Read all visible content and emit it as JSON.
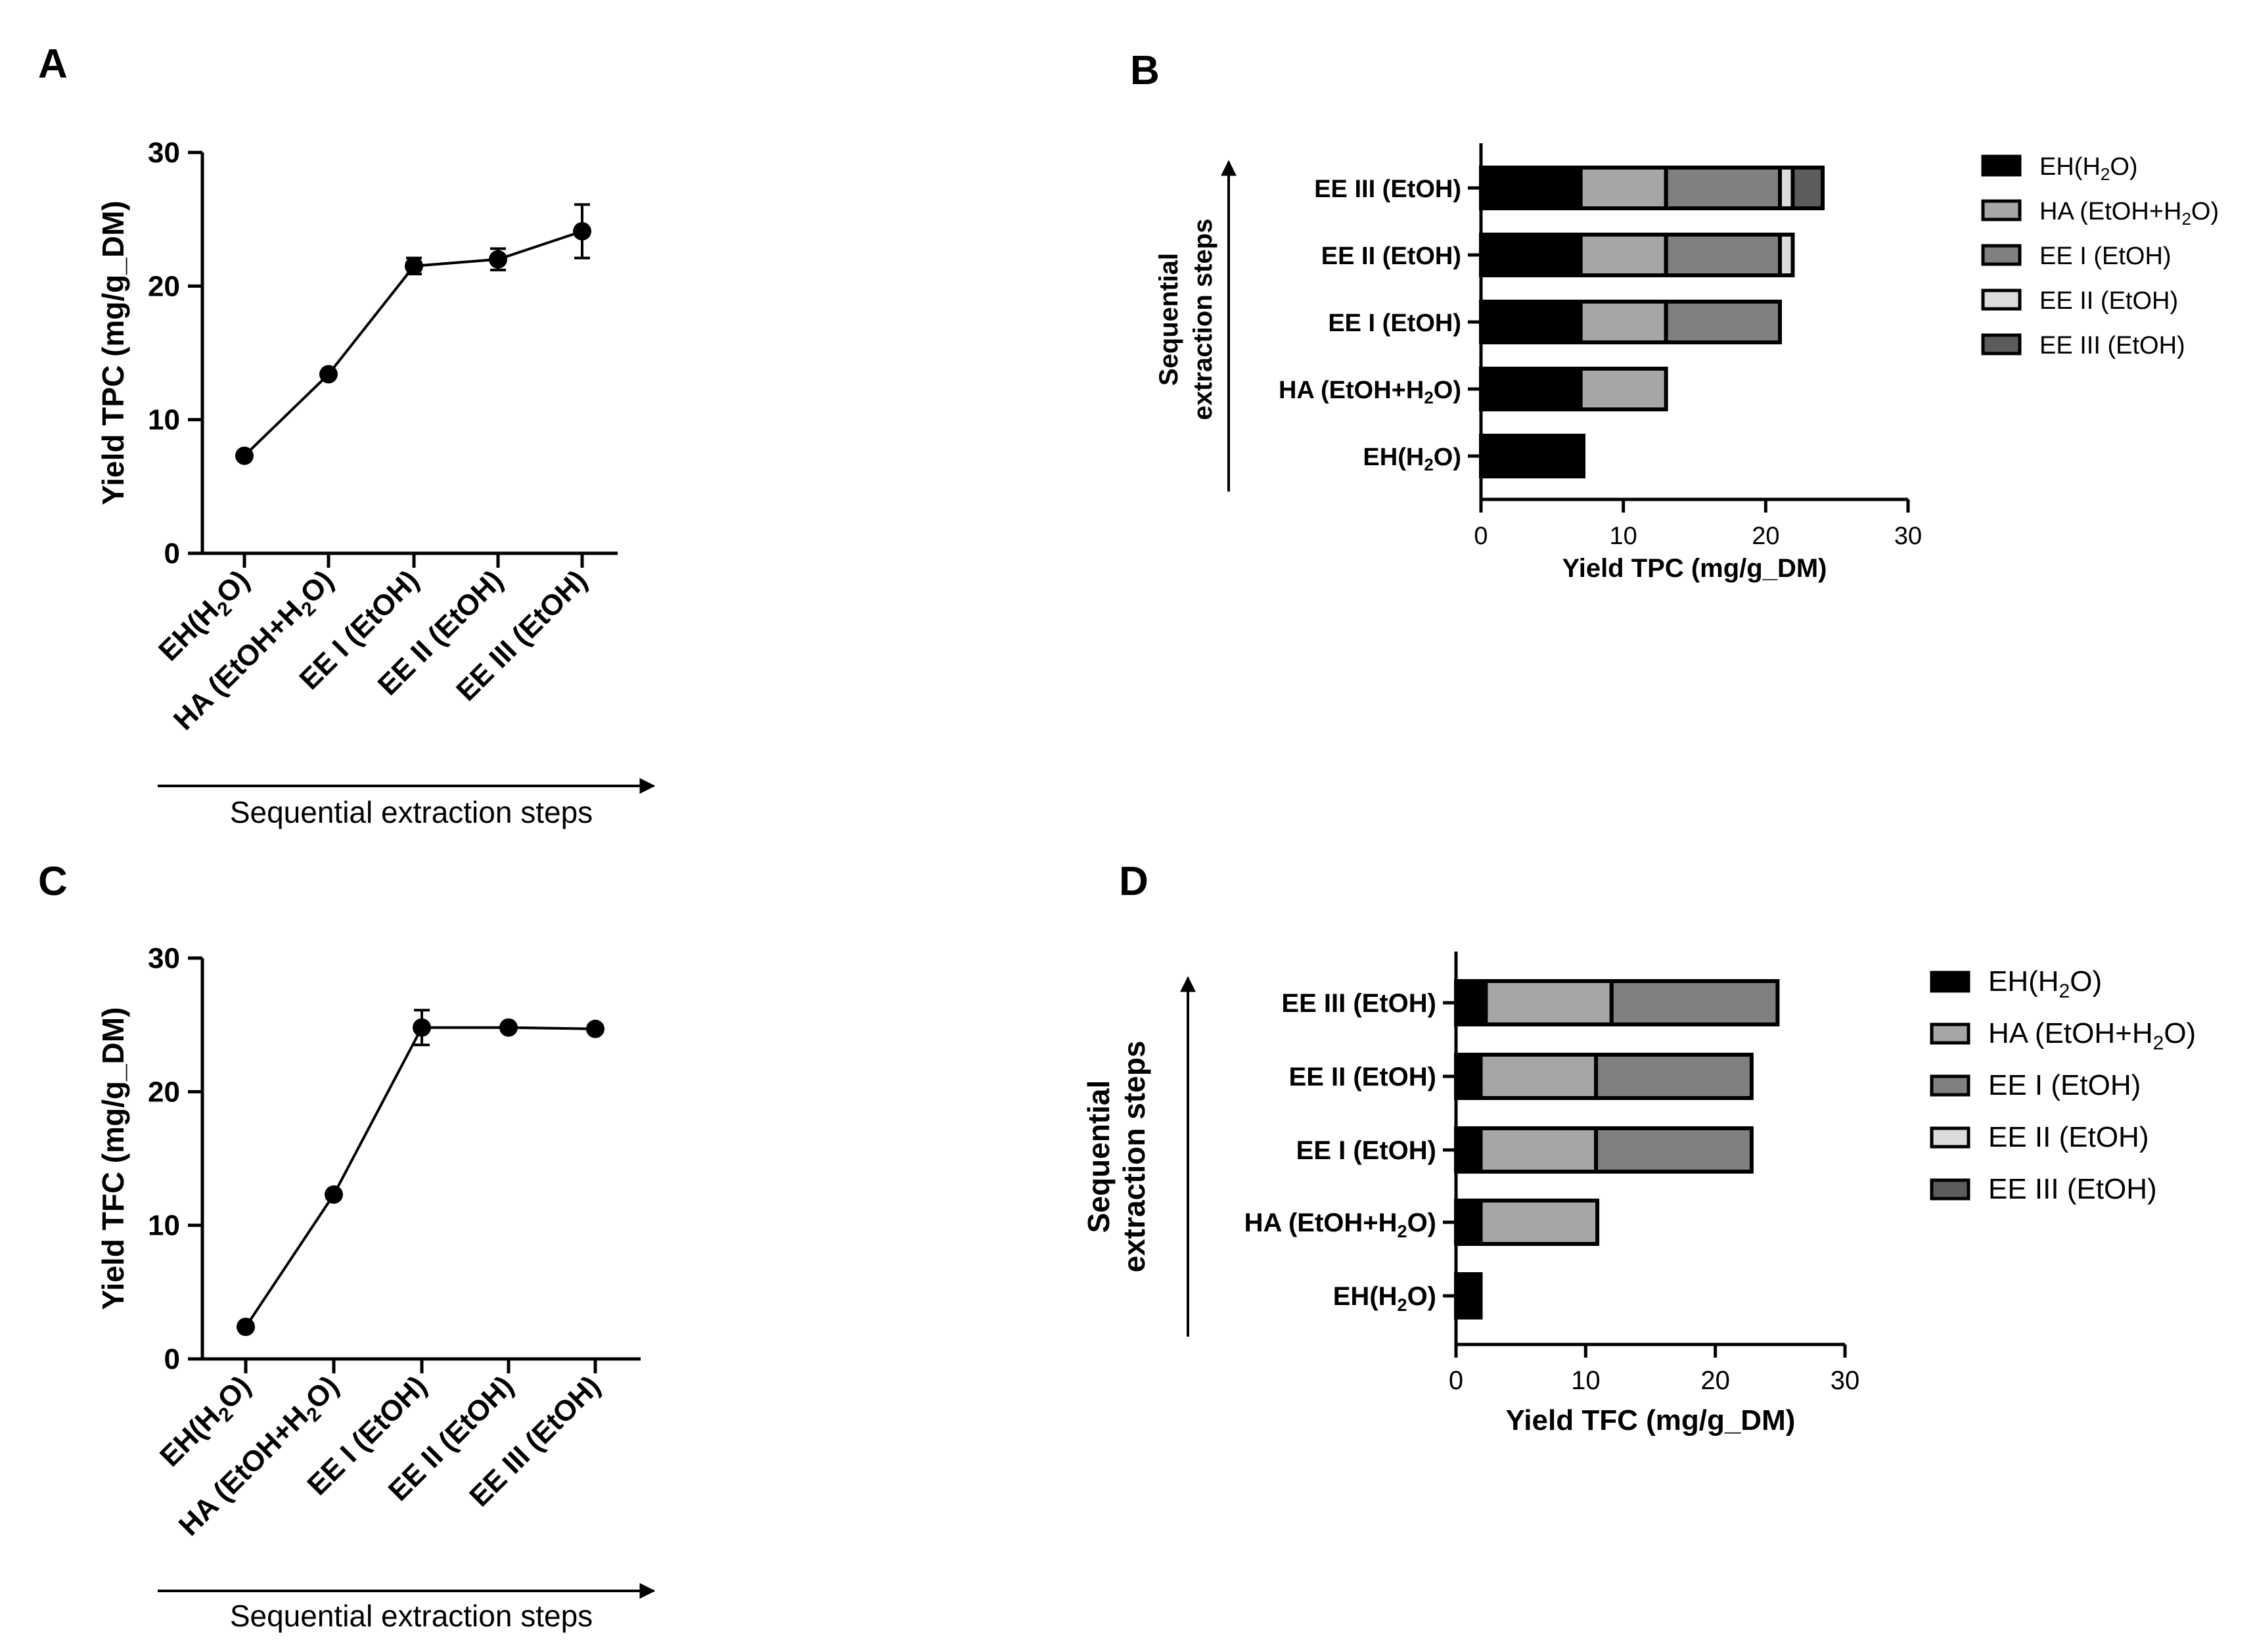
{
  "panel_labels": {
    "a": "A",
    "b": "B",
    "c": "C",
    "d": "D"
  },
  "colors": {
    "eh": "#000000",
    "ha": "#a6a6a6",
    "ee1": "#808080",
    "ee2": "#dcdcdc",
    "ee3": "#5c5c5c",
    "stroke": "#000000"
  },
  "step_labels": [
    {
      "main": "EH(H",
      "sub": "2",
      "tail": "O)"
    },
    {
      "main": "HA (EtOH+H",
      "sub": "2",
      "tail": "O)"
    },
    {
      "main": "EE I (EtOH)",
      "sub": "",
      "tail": ""
    },
    {
      "main": "EE II (EtOH)",
      "sub": "",
      "tail": ""
    },
    {
      "main": "EE III (EtOH)",
      "sub": "",
      "tail": ""
    }
  ],
  "chart_data": [
    {
      "id": "A",
      "type": "line",
      "ylabel": "Yield TPC (mg/g_DM)",
      "xlabel": "Sequential extraction steps",
      "ylim": [
        0,
        30
      ],
      "yticks": [
        0,
        10,
        20,
        30
      ],
      "categories": [
        "EH(H2O)",
        "HA (EtOH+H2O)",
        "EE I (EtOH)",
        "EE II (EtOH)",
        "EE III (EtOH)"
      ],
      "values": [
        7.3,
        13.4,
        21.5,
        22.0,
        24.1
      ],
      "errors": [
        0,
        0,
        0.6,
        0.8,
        2.0
      ]
    },
    {
      "id": "B",
      "type": "bar",
      "orientation": "horizontal",
      "stacked": true,
      "xlabel": "Yield TPC (mg/g_DM)",
      "ylabel": "Sequential extraction steps",
      "xlim": [
        0,
        30
      ],
      "xticks": [
        0,
        10,
        20,
        30
      ],
      "categories": [
        "EH(H2O)",
        "HA (EtOH+H2O)",
        "EE I (EtOH)",
        "EE II (EtOH)",
        "EE III (EtOH)"
      ],
      "series": [
        {
          "name": "EH(H2O)",
          "color_key": "eh",
          "values": [
            7.2,
            7.0,
            7.0,
            7.0,
            7.0
          ]
        },
        {
          "name": "HA (EtOH+H2O)",
          "color_key": "ha",
          "values": [
            0,
            6.0,
            6.0,
            6.0,
            6.0
          ]
        },
        {
          "name": "EE I (EtOH)",
          "color_key": "ee1",
          "values": [
            0,
            0,
            8.0,
            8.0,
            8.0
          ]
        },
        {
          "name": "EE II (EtOH)",
          "color_key": "ee2",
          "values": [
            0,
            0,
            0,
            0.9,
            0.9
          ]
        },
        {
          "name": "EE III (EtOH)",
          "color_key": "ee3",
          "values": [
            0,
            0,
            0,
            0,
            2.1
          ]
        }
      ],
      "legend": "right"
    },
    {
      "id": "C",
      "type": "line",
      "ylabel": "Yield TFC (mg/g_DM)",
      "xlabel": "Sequential extraction steps",
      "ylim": [
        0,
        30
      ],
      "yticks": [
        0,
        10,
        20,
        30
      ],
      "categories": [
        "EH(H2O)",
        "HA (EtOH+H2O)",
        "EE I (EtOH)",
        "EE II (EtOH)",
        "EE III (EtOH)"
      ],
      "values": [
        2.4,
        12.3,
        24.8,
        24.8,
        24.7
      ],
      "errors": [
        0,
        0,
        1.3,
        0,
        0
      ]
    },
    {
      "id": "D",
      "type": "bar",
      "orientation": "horizontal",
      "stacked": true,
      "xlabel": "Yield TFC (mg/g_DM)",
      "ylabel": "Sequential extraction steps",
      "xlim": [
        0,
        30
      ],
      "xticks": [
        0,
        10,
        20,
        30
      ],
      "categories": [
        "EH(H2O)",
        "HA (EtOH+H2O)",
        "EE I (EtOH)",
        "EE II (EtOH)",
        "EE III (EtOH)"
      ],
      "series": [
        {
          "name": "EH(H2O)",
          "color_key": "eh",
          "values": [
            1.9,
            1.9,
            1.9,
            1.9,
            2.3
          ]
        },
        {
          "name": "HA (EtOH+H2O)",
          "color_key": "ha",
          "values": [
            0,
            9.0,
            8.9,
            8.9,
            9.7
          ]
        },
        {
          "name": "EE I (EtOH)",
          "color_key": "ee1",
          "values": [
            0,
            0,
            12.0,
            12.0,
            12.8
          ]
        },
        {
          "name": "EE II (EtOH)",
          "color_key": "ee2",
          "values": [
            0,
            0,
            0,
            0,
            0
          ]
        },
        {
          "name": "EE III (EtOH)",
          "color_key": "ee3",
          "values": [
            0,
            0,
            0,
            0,
            0
          ]
        }
      ],
      "legend": "right"
    }
  ],
  "bar_axis_title": {
    "line1": "Sequential",
    "line2": "extraction steps"
  }
}
